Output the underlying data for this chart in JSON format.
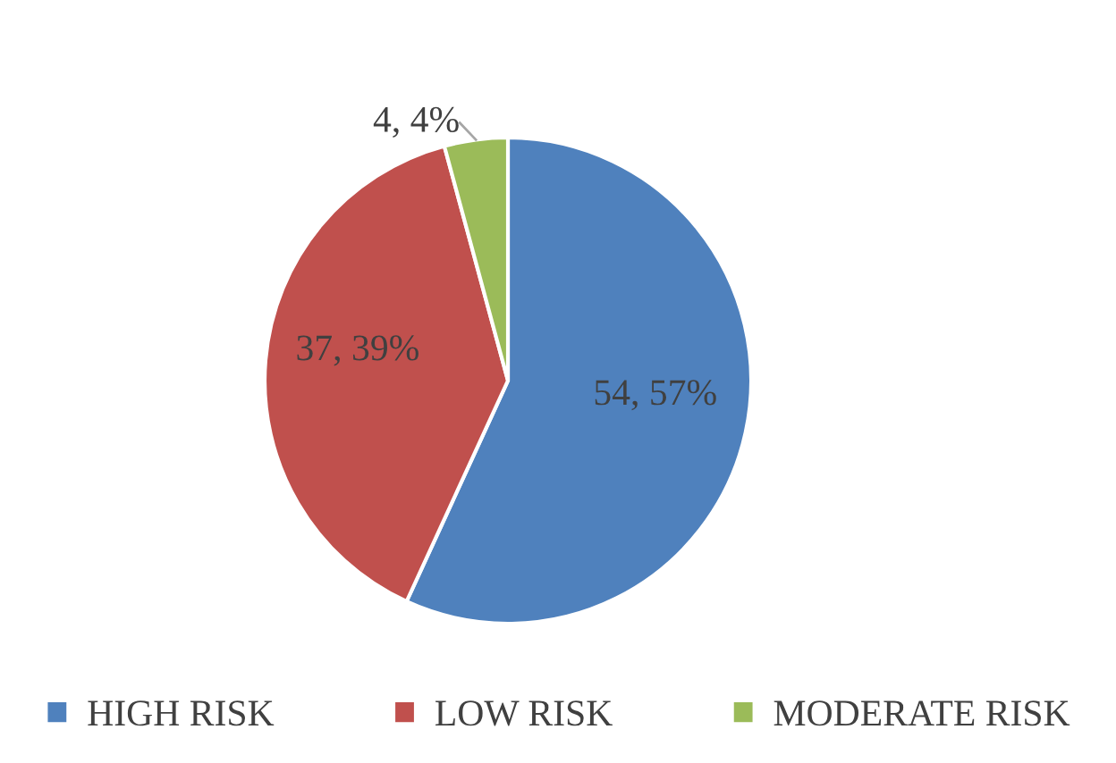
{
  "chart_data": {
    "type": "pie",
    "categories": [
      "HIGH RISK",
      "LOW RISK",
      "MODERATE RISK"
    ],
    "values": [
      54,
      37,
      4
    ],
    "colors": [
      "#4f81bd",
      "#c0504d",
      "#9bbb59"
    ],
    "value_labels": [
      "54, 57%",
      "37, 39%",
      "4, 4%"
    ],
    "legend": "bottom"
  }
}
